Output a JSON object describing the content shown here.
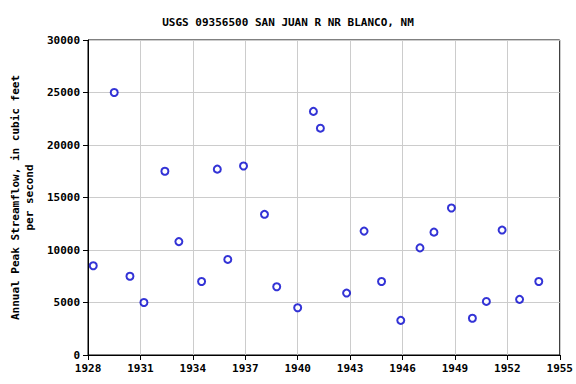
{
  "chart_data": {
    "type": "scatter",
    "title": "USGS 09356500 SAN JUAN R NR BLANCO, NM",
    "y_label": "Annual Peak Streamflow, in cubic feet\nper second",
    "x": [
      1928.3,
      1929.5,
      1930.4,
      1931.2,
      1932.4,
      1933.2,
      1934.5,
      1935.4,
      1936.0,
      1936.9,
      1938.1,
      1938.8,
      1940.0,
      1940.9,
      1941.3,
      1942.8,
      1943.8,
      1944.8,
      1945.9,
      1947.0,
      1947.8,
      1948.8,
      1950.0,
      1950.8,
      1951.7,
      1952.7,
      1953.8
    ],
    "values": [
      8500,
      25000,
      7500,
      5000,
      17500,
      10800,
      7000,
      17700,
      9100,
      18000,
      13400,
      6500,
      4500,
      23200,
      21600,
      5900,
      11800,
      7000,
      3300,
      10200,
      11700,
      14000,
      3500,
      5100,
      11900,
      5300,
      7000
    ],
    "color": "#0000cc",
    "marker": "circle",
    "xlim": [
      1928,
      1955
    ],
    "xticks": [
      1928,
      1931,
      1934,
      1937,
      1940,
      1943,
      1946,
      1949,
      1952,
      1955
    ],
    "ylim": [
      0,
      30000
    ],
    "yticks": [
      0,
      5000,
      10000,
      15000,
      20000,
      25000,
      30000
    ],
    "grid": true
  }
}
